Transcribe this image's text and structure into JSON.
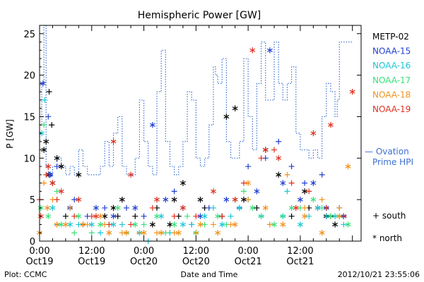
{
  "chart_data": {
    "type": "scatter",
    "title": "Hemispheric Power [GW]",
    "ylabel": "P [GW]",
    "xlabel": "Date and Time",
    "ylim": [
      0,
      26
    ],
    "yticks": [
      0,
      5,
      10,
      15,
      20,
      25
    ],
    "x_unit": "hours since 2012-10-19 00:00",
    "xlim": [
      0,
      74
    ],
    "xticks": [
      {
        "hour": 0,
        "time": "0:00",
        "date": "Oct19"
      },
      {
        "hour": 12,
        "time": "12:00",
        "date": "Oct19"
      },
      {
        "hour": 24,
        "time": "0:00",
        "date": "Oct20"
      },
      {
        "hour": 36,
        "time": "12:00",
        "date": "Oct20"
      },
      {
        "hour": 48,
        "time": "0:00",
        "date": "Oct21"
      },
      {
        "hour": 60,
        "time": "12:00",
        "date": "Oct21"
      }
    ],
    "legend": {
      "placement": "right",
      "satellites": [
        {
          "name": "METP-02",
          "color": "#000000"
        },
        {
          "name": "NOAA-15",
          "color": "#1f3fd1"
        },
        {
          "name": "NOAA-16",
          "color": "#19c7d6"
        },
        {
          "name": "NOAA-17",
          "color": "#39e07a"
        },
        {
          "name": "NOAA-18",
          "color": "#f0921a"
        },
        {
          "name": "NOAA-19",
          "color": "#e0301e"
        }
      ],
      "ovation_label_1": "— Ovation",
      "ovation_label_2": "Prime HPI",
      "ovation_color": "#3a6fd1",
      "south_label": "+ south",
      "north_label": "* north"
    },
    "ovation_series": [
      [
        0,
        14
      ],
      [
        0.5,
        19
      ],
      [
        1,
        26
      ],
      [
        1.5,
        9
      ],
      [
        2,
        8
      ],
      [
        3,
        9
      ],
      [
        4,
        10
      ],
      [
        5,
        9
      ],
      [
        6,
        8
      ],
      [
        7,
        9
      ],
      [
        8,
        8
      ],
      [
        9,
        11
      ],
      [
        10,
        9
      ],
      [
        11,
        8
      ],
      [
        12,
        8
      ],
      [
        13,
        8
      ],
      [
        14,
        9
      ],
      [
        15,
        12
      ],
      [
        16,
        9
      ],
      [
        17,
        13
      ],
      [
        18,
        15
      ],
      [
        19,
        9
      ],
      [
        20,
        8
      ],
      [
        21,
        8
      ],
      [
        22,
        10
      ],
      [
        23,
        17
      ],
      [
        24,
        12
      ],
      [
        25,
        9
      ],
      [
        26,
        8
      ],
      [
        27,
        18
      ],
      [
        28,
        23
      ],
      [
        29,
        12
      ],
      [
        30,
        9
      ],
      [
        31,
        8
      ],
      [
        32,
        9
      ],
      [
        33,
        12
      ],
      [
        34,
        18
      ],
      [
        35,
        17
      ],
      [
        36,
        10
      ],
      [
        37,
        9
      ],
      [
        38,
        10
      ],
      [
        39,
        14
      ],
      [
        40,
        21
      ],
      [
        40.5,
        20
      ],
      [
        41,
        19
      ],
      [
        42,
        22
      ],
      [
        43,
        12
      ],
      [
        44,
        10
      ],
      [
        45,
        10
      ],
      [
        46,
        12
      ],
      [
        47,
        22
      ],
      [
        48,
        15
      ],
      [
        49,
        11
      ],
      [
        50,
        19
      ],
      [
        51,
        24
      ],
      [
        52,
        17
      ],
      [
        53,
        17
      ],
      [
        54,
        24
      ],
      [
        55,
        19
      ],
      [
        56,
        17
      ],
      [
        57,
        19
      ],
      [
        58,
        21
      ],
      [
        59,
        13
      ],
      [
        60,
        11
      ],
      [
        61,
        11
      ],
      [
        62,
        10
      ],
      [
        63,
        11
      ],
      [
        64,
        10
      ],
      [
        65,
        15
      ],
      [
        66,
        19
      ],
      [
        67,
        18
      ],
      [
        68,
        15
      ],
      [
        68.5,
        17
      ],
      [
        69,
        24
      ],
      [
        70,
        24
      ],
      [
        71,
        24
      ],
      [
        72,
        24
      ]
    ],
    "series": [
      {
        "name": "METP-02",
        "north": [
          [
            1,
            11
          ],
          [
            1.5,
            12
          ],
          [
            2.2,
            8
          ],
          [
            3,
            7
          ],
          [
            4,
            10
          ],
          [
            5,
            9
          ],
          [
            9,
            8
          ],
          [
            15,
            3
          ],
          [
            17,
            4
          ],
          [
            19,
            5
          ],
          [
            26,
            2
          ],
          [
            30,
            2
          ],
          [
            31,
            5
          ],
          [
            33,
            7
          ],
          [
            37,
            5
          ],
          [
            43,
            15
          ],
          [
            45,
            16
          ],
          [
            47,
            5
          ],
          [
            52,
            11
          ],
          [
            55,
            8
          ],
          [
            61,
            6
          ],
          [
            64,
            4
          ],
          [
            66,
            3
          ],
          [
            68,
            2
          ],
          [
            70,
            3
          ]
        ],
        "south": [
          [
            2.2,
            18
          ],
          [
            2.8,
            14
          ],
          [
            6,
            3
          ],
          [
            10,
            2
          ],
          [
            18,
            3
          ],
          [
            22,
            3
          ],
          [
            27,
            4
          ],
          [
            32,
            3
          ],
          [
            38,
            4
          ],
          [
            42,
            3
          ],
          [
            50,
            4
          ],
          [
            58,
            3
          ],
          [
            62,
            4
          ],
          [
            67,
            3
          ]
        ]
      },
      {
        "name": "NOAA-15",
        "north": [
          [
            0.8,
            19
          ],
          [
            2.5,
            8
          ],
          [
            7,
            4
          ],
          [
            13,
            4
          ],
          [
            17,
            3
          ],
          [
            22,
            4
          ],
          [
            26,
            14
          ],
          [
            29,
            5
          ],
          [
            33,
            4
          ],
          [
            37,
            3
          ],
          [
            43,
            5
          ],
          [
            50,
            6
          ],
          [
            53,
            23
          ],
          [
            56,
            7
          ],
          [
            60,
            5
          ],
          [
            63,
            7
          ],
          [
            66,
            4
          ],
          [
            70,
            3
          ]
        ],
        "south": [
          [
            2,
            15
          ],
          [
            4,
            9
          ],
          [
            8,
            5
          ],
          [
            11,
            3
          ],
          [
            15,
            4
          ],
          [
            20,
            4
          ],
          [
            24,
            3
          ],
          [
            31,
            6
          ],
          [
            35,
            2
          ],
          [
            39,
            4
          ],
          [
            46,
            4
          ],
          [
            48,
            9
          ],
          [
            52,
            10
          ],
          [
            55,
            12
          ],
          [
            58,
            9
          ],
          [
            61,
            7
          ],
          [
            65,
            8
          ],
          [
            69,
            4
          ]
        ]
      },
      {
        "name": "NOAA-16",
        "north": [
          [
            0.5,
            13
          ],
          [
            3,
            4
          ],
          [
            7,
            2
          ],
          [
            12,
            2
          ],
          [
            17,
            2
          ],
          [
            23,
            1
          ],
          [
            28,
            3
          ],
          [
            33,
            2
          ],
          [
            38,
            3
          ],
          [
            42,
            2
          ],
          [
            46,
            4
          ],
          [
            51,
            3
          ],
          [
            56,
            3
          ],
          [
            60,
            2
          ],
          [
            64,
            4
          ],
          [
            68,
            3
          ]
        ],
        "south": [
          [
            1.2,
            17
          ],
          [
            4,
            2
          ],
          [
            9,
            2
          ],
          [
            14,
            1
          ],
          [
            19,
            2
          ],
          [
            25,
            0
          ],
          [
            30,
            1
          ],
          [
            35,
            2
          ],
          [
            40,
            4
          ],
          [
            44,
            3
          ],
          [
            48,
            5
          ],
          [
            53,
            2
          ],
          [
            57,
            6
          ],
          [
            62,
            3
          ],
          [
            66,
            3
          ],
          [
            70,
            2
          ]
        ]
      },
      {
        "name": "NOAA-17",
        "north": [
          [
            0.3,
            4
          ],
          [
            2,
            3
          ],
          [
            5,
            2
          ],
          [
            9,
            3
          ],
          [
            14,
            2
          ],
          [
            18,
            4
          ],
          [
            22,
            2
          ],
          [
            27,
            3
          ],
          [
            31,
            2
          ],
          [
            36,
            1
          ],
          [
            41,
            3
          ],
          [
            45,
            5
          ],
          [
            49,
            4
          ],
          [
            54,
            2
          ],
          [
            58,
            4
          ],
          [
            63,
            5
          ],
          [
            67,
            3
          ],
          [
            71,
            2
          ]
        ],
        "south": [
          [
            1,
            14
          ],
          [
            4,
            6
          ],
          [
            8,
            1
          ],
          [
            12,
            1
          ],
          [
            16,
            2
          ],
          [
            20,
            1
          ],
          [
            24,
            2
          ],
          [
            29,
            1
          ],
          [
            34,
            3
          ],
          [
            38,
            2
          ],
          [
            43,
            2
          ],
          [
            47,
            6
          ],
          [
            51,
            3
          ],
          [
            56,
            3
          ],
          [
            60,
            4
          ],
          [
            65,
            4
          ],
          [
            69,
            3
          ]
        ]
      },
      {
        "name": "NOAA-18",
        "north": [
          [
            0,
            1
          ],
          [
            1.8,
            4
          ],
          [
            4,
            2
          ],
          [
            6,
            2
          ],
          [
            10,
            2
          ],
          [
            14,
            3
          ],
          [
            16,
            1
          ],
          [
            20,
            1
          ],
          [
            24,
            1
          ],
          [
            28,
            1
          ],
          [
            32,
            1
          ],
          [
            37,
            2
          ],
          [
            41,
            1
          ],
          [
            45,
            2
          ],
          [
            48,
            7
          ],
          [
            52,
            4
          ],
          [
            56,
            2
          ],
          [
            61,
            3
          ],
          [
            65,
            1
          ],
          [
            69,
            3
          ],
          [
            71,
            9
          ]
        ],
        "south": [
          [
            1,
            7
          ],
          [
            3,
            5
          ],
          [
            7,
            4
          ],
          [
            11,
            2
          ],
          [
            15,
            2
          ],
          [
            19,
            1
          ],
          [
            23,
            1
          ],
          [
            27,
            1
          ],
          [
            31,
            1
          ],
          [
            36,
            1
          ],
          [
            40,
            2
          ],
          [
            44,
            2
          ],
          [
            48,
            5
          ],
          [
            53,
            2
          ],
          [
            57,
            8
          ],
          [
            61,
            4
          ],
          [
            65,
            5
          ],
          [
            69,
            4
          ]
        ]
      },
      {
        "name": "NOAA-19",
        "north": [
          [
            0.3,
            3
          ],
          [
            2,
            9
          ],
          [
            3,
            7
          ],
          [
            5,
            6
          ],
          [
            9,
            5
          ],
          [
            13,
            3
          ],
          [
            17,
            12
          ],
          [
            21,
            8
          ],
          [
            27,
            5
          ],
          [
            33,
            4
          ],
          [
            40,
            6
          ],
          [
            45,
            5
          ],
          [
            49,
            23
          ],
          [
            52,
            11
          ],
          [
            55,
            10
          ],
          [
            59,
            4
          ],
          [
            63,
            13
          ],
          [
            67,
            14
          ],
          [
            72,
            18
          ]
        ],
        "south": [
          [
            0,
            5
          ],
          [
            1.5,
            8
          ],
          [
            4,
            5
          ],
          [
            8,
            3
          ],
          [
            12,
            3
          ],
          [
            16,
            2
          ],
          [
            21,
            2
          ],
          [
            26,
            4
          ],
          [
            31,
            3
          ],
          [
            36,
            3
          ],
          [
            42,
            3
          ],
          [
            47,
            7
          ],
          [
            51,
            10
          ],
          [
            54,
            11
          ],
          [
            58,
            7
          ],
          [
            62,
            6
          ],
          [
            66,
            4
          ],
          [
            70,
            3
          ]
        ]
      }
    ]
  },
  "footer": {
    "plot_credit": "Plot: CCMC",
    "timestamp": "2012/10/21 23:55:06"
  }
}
